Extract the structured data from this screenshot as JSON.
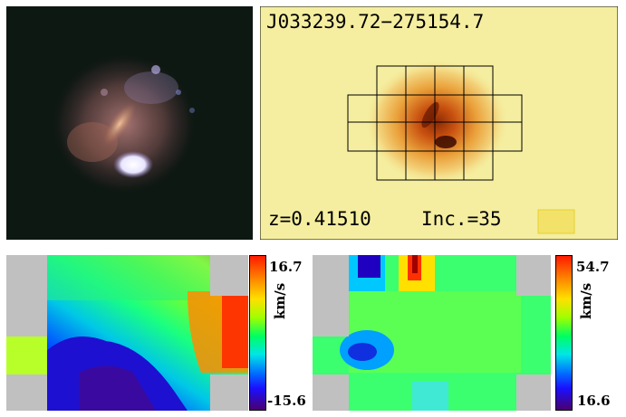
{
  "figure": {
    "object_name": "J033239.72−275154.7",
    "redshift_label": "z=0.41510",
    "inclination_label": "Inc.=35"
  },
  "velocity_map": {
    "colorbar_max": "16.7",
    "colorbar_min": "-15.6",
    "unit": "km/s"
  },
  "dispersion_map": {
    "colorbar_max": "54.7",
    "colorbar_min": "16.6",
    "unit": "km/s"
  },
  "colors": {
    "flux_background": "#f5eea0",
    "grid_line": "#000000",
    "masked_pixel": "#c0c0c0",
    "beam_box": "#f2e26a"
  }
}
